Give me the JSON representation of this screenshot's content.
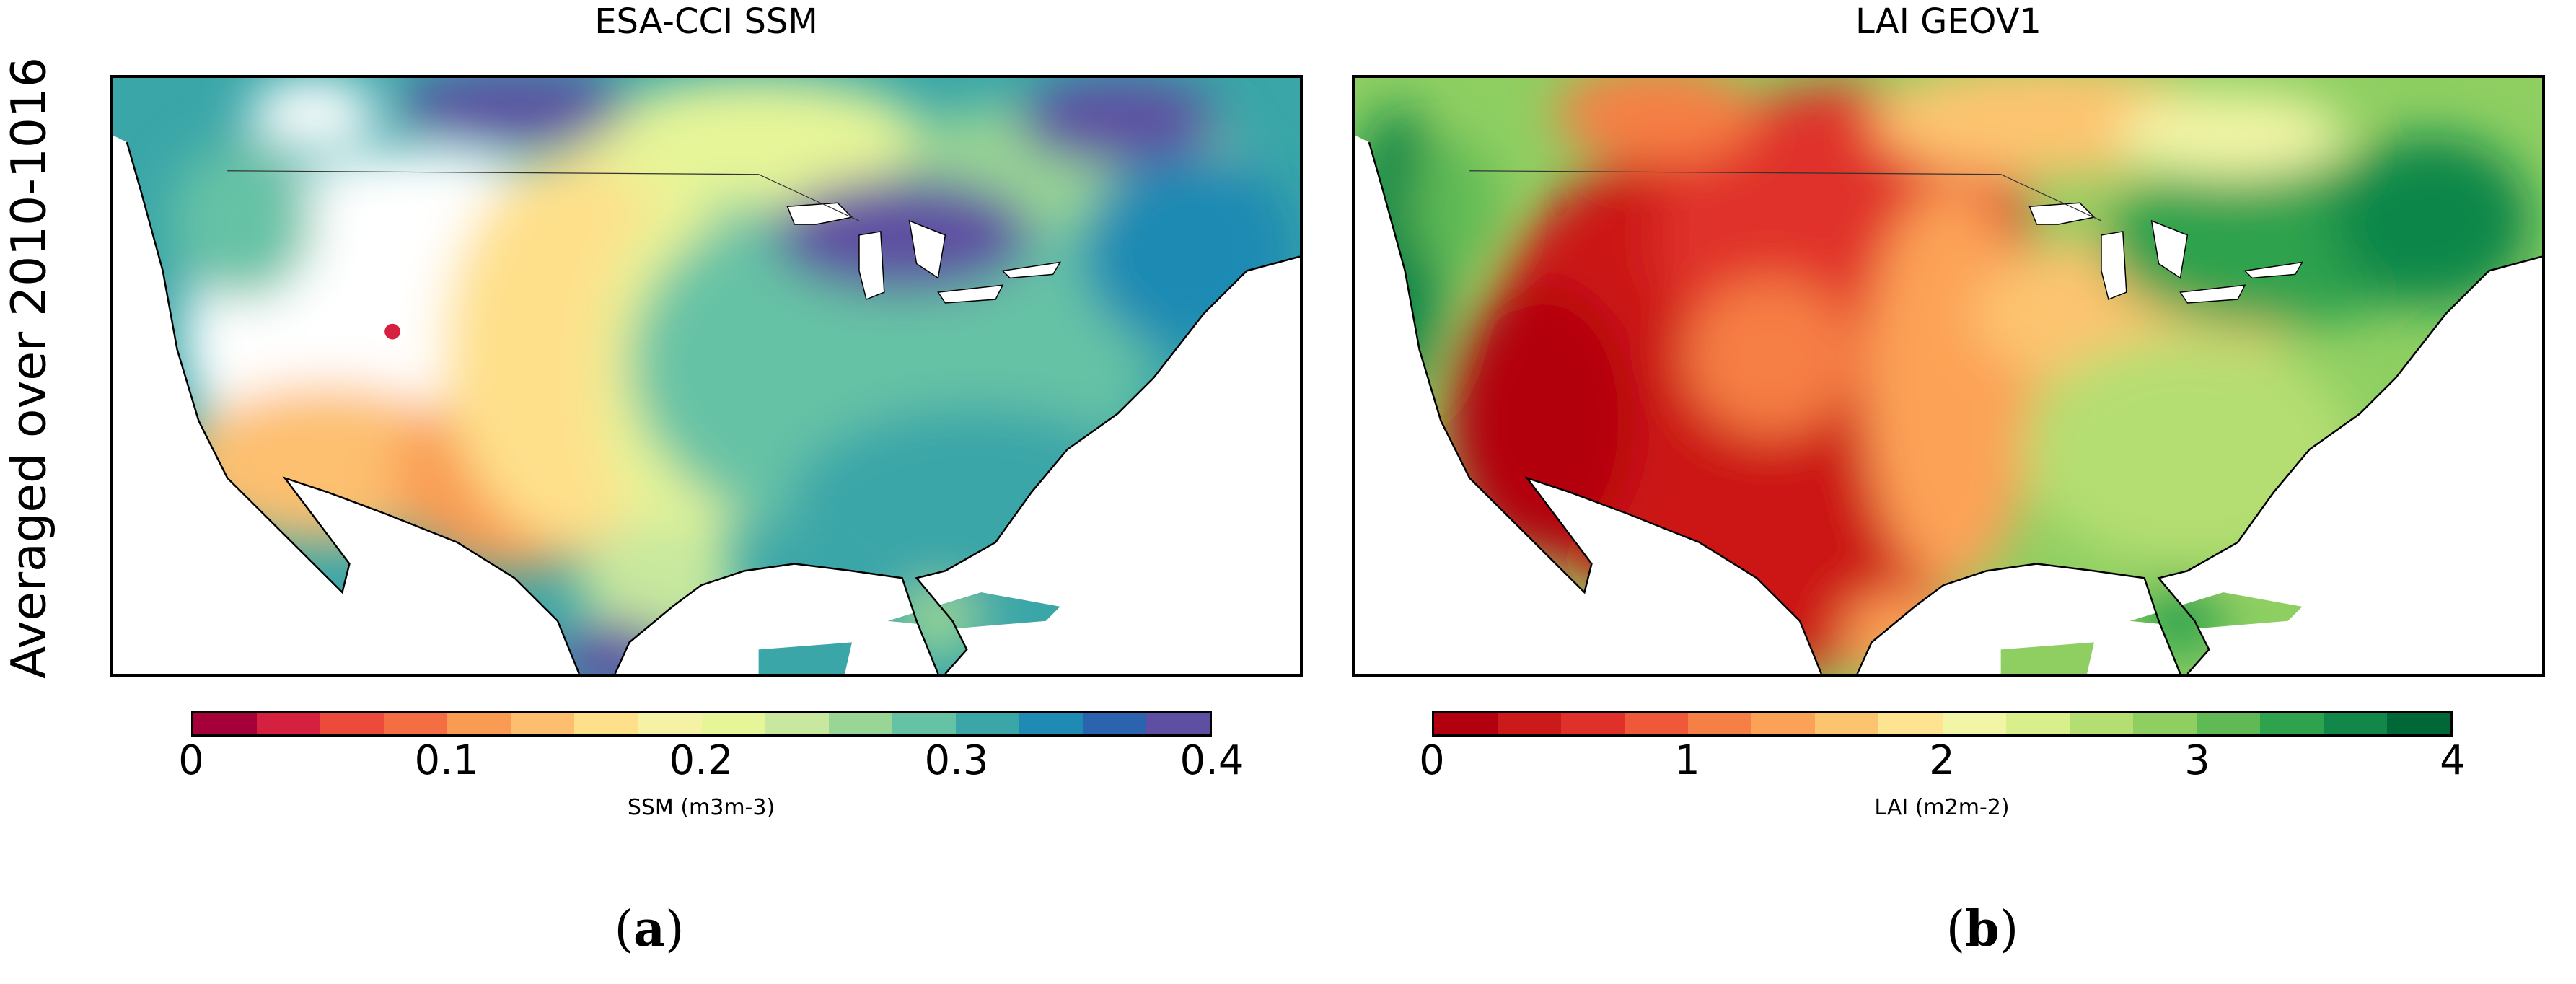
{
  "ylabel": "Averaged over 2010-1016",
  "panels": [
    {
      "title": "ESA-CCI SSM",
      "caption_open": "(",
      "caption_letter": "a",
      "caption_close": ")",
      "colorbar": {
        "label": "SSM (m3m-3)",
        "ticks": [
          "0",
          "0.1",
          "0.2",
          "0.3",
          "0.4"
        ],
        "range": [
          0,
          0.4
        ],
        "colors": [
          "#a5003a",
          "#d5203f",
          "#ec4a3b",
          "#f46d43",
          "#f99b52",
          "#fdbf6f",
          "#fee08b",
          "#f5f2a5",
          "#e6f598",
          "#c7e89e",
          "#99d594",
          "#66c2a5",
          "#3aa6a8",
          "#1f8ab3",
          "#2c63ae",
          "#5e4fa2"
        ]
      }
    },
    {
      "title": "LAI GEOV1",
      "caption_open": "(",
      "caption_letter": "b",
      "caption_close": ")",
      "colorbar": {
        "label": "LAI (m2m-2)",
        "ticks": [
          "0",
          "1",
          "2",
          "3",
          "4"
        ],
        "range": [
          0,
          4
        ],
        "colors": [
          "#b3000f",
          "#cc1919",
          "#e0302a",
          "#f0583a",
          "#f67f45",
          "#fca257",
          "#fdc470",
          "#fee491",
          "#f2f5a6",
          "#d9ef8b",
          "#b5de72",
          "#8fcf62",
          "#5fba55",
          "#2fa24d",
          "#11874a",
          "#006837"
        ]
      }
    }
  ]
}
